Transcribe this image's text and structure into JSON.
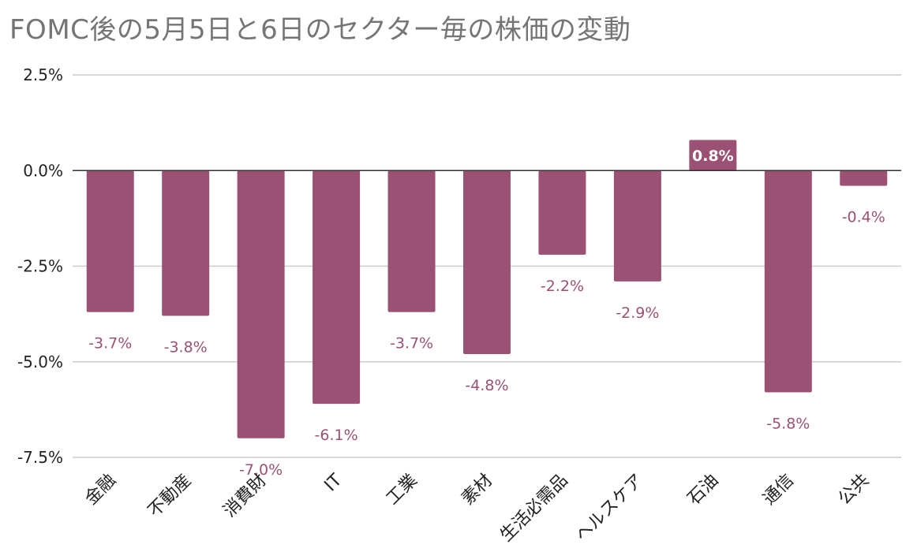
{
  "chart_data": {
    "type": "bar",
    "title": "FOMC後の5月5日と6日のセクター毎の株価の変動",
    "xlabel": "",
    "ylabel": "",
    "ylim": [
      -7.5,
      2.5
    ],
    "yticks": [
      2.5,
      0.0,
      -2.5,
      -5.0,
      -7.5
    ],
    "ytick_labels": [
      "2.5%",
      "0.0%",
      "-2.5%",
      "-5.0%",
      "-7.5%"
    ],
    "grid": true,
    "legend": "none",
    "bar_color": "#9b5174",
    "zero_line_color": "#333333",
    "grid_color": "#cccccc",
    "categories": [
      "金融",
      "不動産",
      "消費財",
      "IT",
      "工業",
      "素材",
      "生活必需品",
      "ヘルスケア",
      "石油",
      "通信",
      "公共"
    ],
    "values": [
      -3.7,
      -3.8,
      -7.0,
      -6.1,
      -3.7,
      -4.8,
      -2.2,
      -2.9,
      0.8,
      -5.8,
      -0.4
    ],
    "value_labels": [
      "-3.7%",
      "-3.8%",
      "-7.0%",
      "-6.1%",
      "-3.7%",
      "-4.8%",
      "-2.2%",
      "-2.9%",
      "0.8%",
      "-5.8%",
      "-0.4%"
    ]
  }
}
